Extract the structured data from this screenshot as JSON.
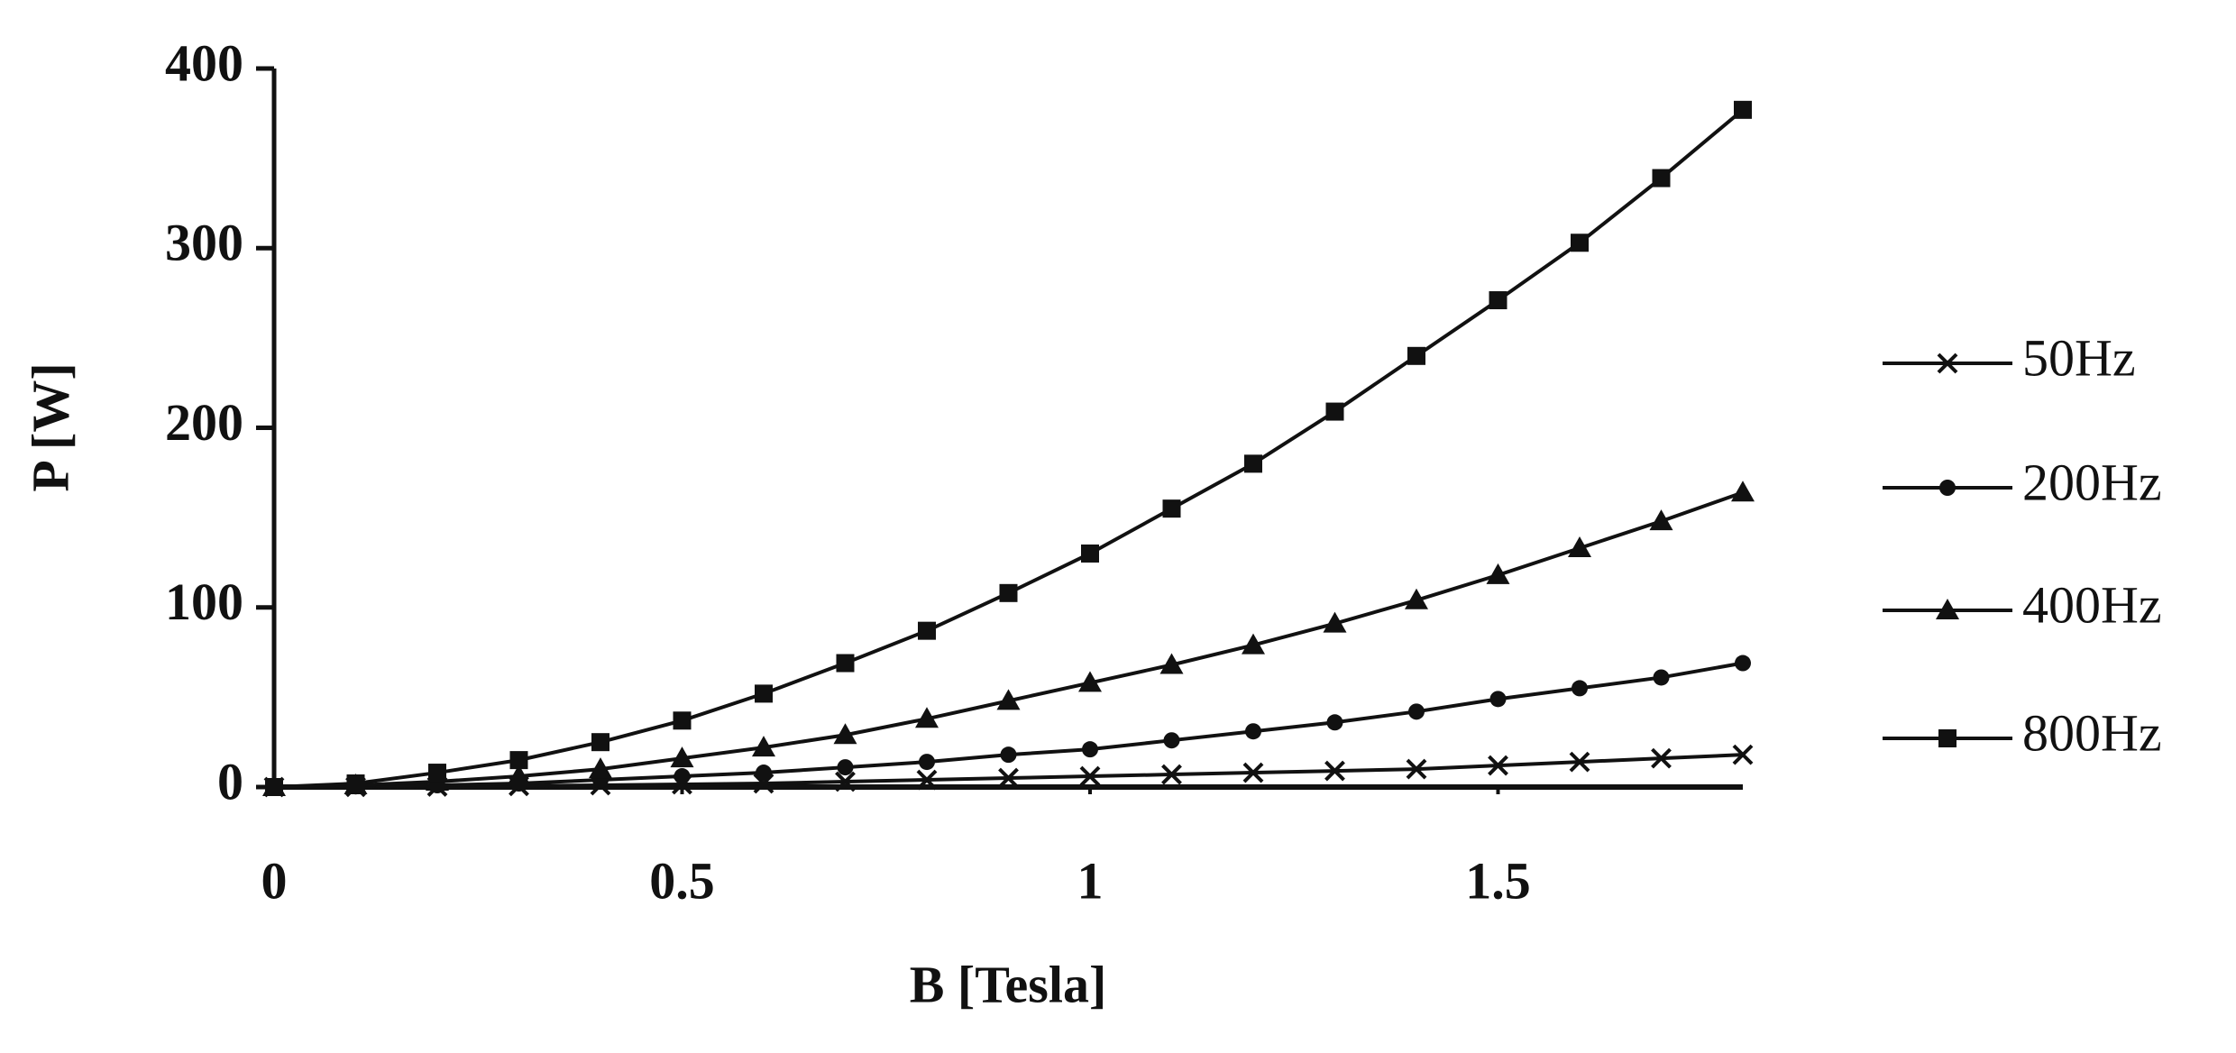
{
  "chart_data": {
    "type": "line",
    "x_label": "B [Tesla]",
    "y_label": "P [W]",
    "x": [
      0,
      0.1,
      0.2,
      0.3,
      0.4,
      0.5,
      0.6,
      0.7,
      0.8,
      0.9,
      1.0,
      1.1,
      1.2,
      1.3,
      1.4,
      1.5,
      1.6,
      1.7,
      1.8
    ],
    "series": [
      {
        "name": "50Hz",
        "color": "#111111",
        "marker": "x",
        "values": [
          0,
          0.1,
          0.3,
          0.6,
          1,
          1.5,
          2,
          3,
          4,
          5,
          6,
          7,
          8,
          9,
          10,
          12,
          14,
          16,
          18
        ]
      },
      {
        "name": "200Hz",
        "color": "#111111",
        "marker": "circle",
        "values": [
          0,
          0.4,
          1,
          2,
          4,
          6,
          8,
          11,
          14,
          18,
          21,
          26,
          31,
          36,
          42,
          49,
          55,
          61,
          69
        ]
      },
      {
        "name": "400Hz",
        "color": "#111111",
        "marker": "triangle",
        "values": [
          0,
          1,
          3,
          6,
          10,
          16,
          22,
          29,
          38,
          48,
          58,
          68,
          79,
          91,
          104,
          118,
          133,
          148,
          164
        ]
      },
      {
        "name": "800Hz",
        "color": "#111111",
        "marker": "square",
        "values": [
          0,
          2,
          8,
          15,
          25,
          37,
          52,
          69,
          87,
          108,
          130,
          155,
          180,
          209,
          240,
          271,
          303,
          339,
          377
        ]
      }
    ],
    "xlim": [
      0,
      1.8
    ],
    "xticks": [
      0,
      0.5,
      1,
      1.5
    ],
    "ylim": [
      0,
      400
    ],
    "yticks": [
      0,
      100,
      200,
      300,
      400
    ],
    "legend": "right",
    "grid": false
  }
}
